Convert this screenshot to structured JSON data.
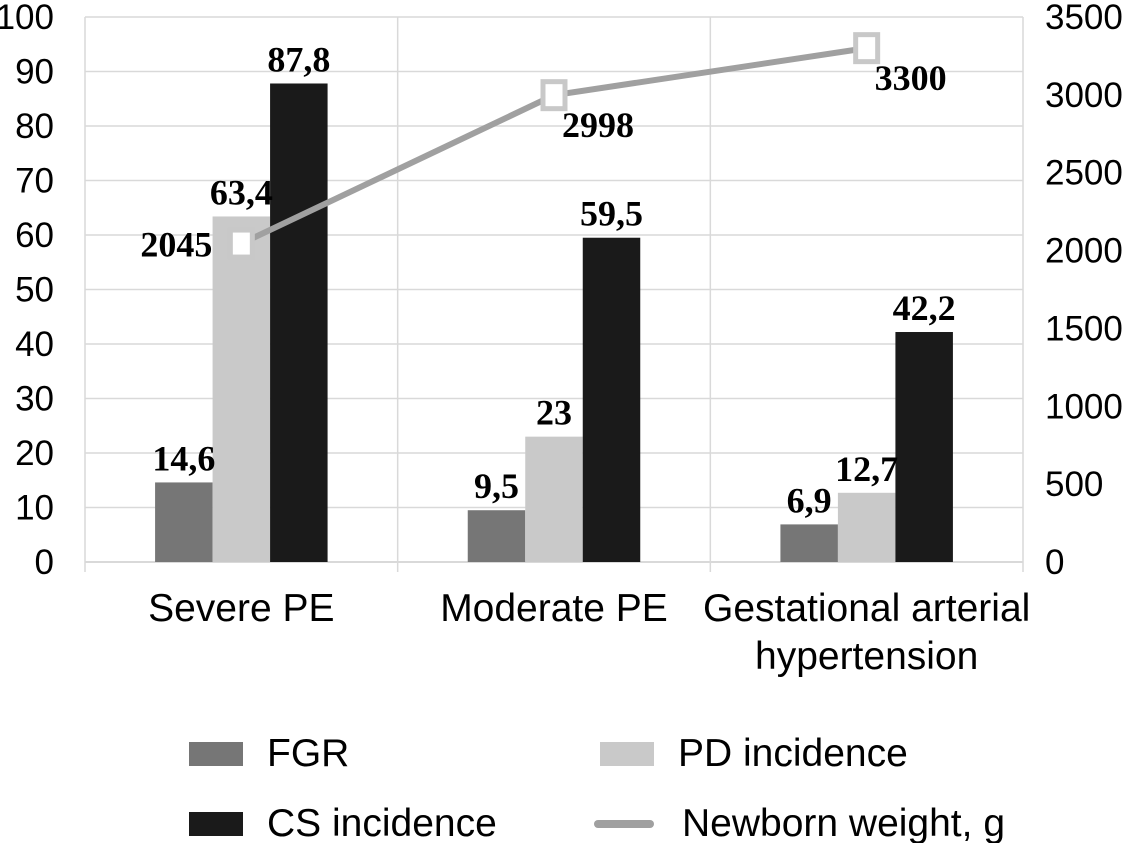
{
  "chart_data": {
    "type": "bar+line",
    "categories": [
      "Severe PE",
      "Moderate PE",
      "Gestational arterial\nhypertension"
    ],
    "bar_series": [
      {
        "name": "FGR",
        "color": "#767676",
        "values": [
          14.6,
          9.5,
          6.9
        ],
        "labels": [
          "14,6",
          "9,5",
          "6,9"
        ]
      },
      {
        "name": "PD incidence",
        "color": "#c9c9c9",
        "values": [
          63.4,
          23,
          12.7
        ],
        "labels": [
          "63,4",
          "23",
          "12,7"
        ]
      },
      {
        "name": "CS incidence",
        "color": "#1a1a1a",
        "values": [
          87.8,
          59.5,
          42.2
        ],
        "labels": [
          "87,8",
          "59,5",
          "42,2"
        ]
      }
    ],
    "line_series": {
      "name": "Newborn weight, g",
      "color": "#a0a0a0",
      "marker_fill": "#ffffff",
      "marker_border": "#c8c8c8",
      "axis": "right",
      "values": [
        2045,
        2998,
        3300
      ],
      "labels": [
        "2045",
        "2998",
        "3300"
      ],
      "label_placement": [
        "left",
        "below-right",
        "below-right"
      ]
    },
    "left_axis": {
      "min": 0,
      "max": 100,
      "step": 10,
      "ticks": [
        "0",
        "10",
        "20",
        "30",
        "40",
        "50",
        "60",
        "70",
        "80",
        "90",
        "100"
      ]
    },
    "right_axis": {
      "min": 0,
      "max": 3500,
      "step": 500,
      "ticks": [
        "0",
        "500",
        "1000",
        "1500",
        "2000",
        "2500",
        "3000",
        "3500"
      ]
    },
    "grid": true,
    "grid_color": "#d9d9d9",
    "text_color": "#000000",
    "legend_position": "bottom"
  }
}
